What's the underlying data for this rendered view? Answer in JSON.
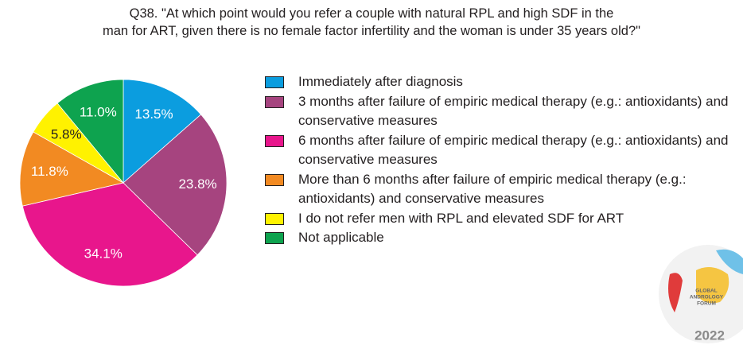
{
  "chart_data": {
    "type": "pie",
    "title": [
      "Q38. \"At which point would you refer a couple with natural RPL and high SDF in the",
      "man for ART, given there is no female factor infertility and the woman is under 35 years old?\""
    ],
    "categories": [
      "Immediately after diagnosis",
      "3 months after failure of empiric medical therapy (e.g.: antioxidants) and conservative measures",
      "6 months after failure of empiric medical therapy (e.g.: antioxidants) and conservative measures",
      "More than 6 months after failure of empiric medical therapy (e.g.: antioxidants) and conservative measures",
      "I do not refer men with RPL and elevated SDF for ART",
      "Not applicable"
    ],
    "values": [
      13.5,
      23.8,
      34.1,
      11.8,
      5.8,
      11.0
    ],
    "value_labels": [
      "13.5%",
      "23.8%",
      "34.1%",
      "11.8%",
      "5.8%",
      "11.0%"
    ],
    "colors": [
      "#0b9ddf",
      "#a6447f",
      "#e8168c",
      "#f28a22",
      "#fff200",
      "#0ea34f"
    ],
    "label_colors": [
      "#ffffff",
      "#ffffff",
      "#ffffff",
      "#ffffff",
      "#231f20",
      "#ffffff"
    ],
    "legend": "right"
  },
  "logo": {
    "lines": [
      "GLOBAL",
      "ANDROLOGY",
      "FORUM"
    ],
    "year": "2022"
  }
}
